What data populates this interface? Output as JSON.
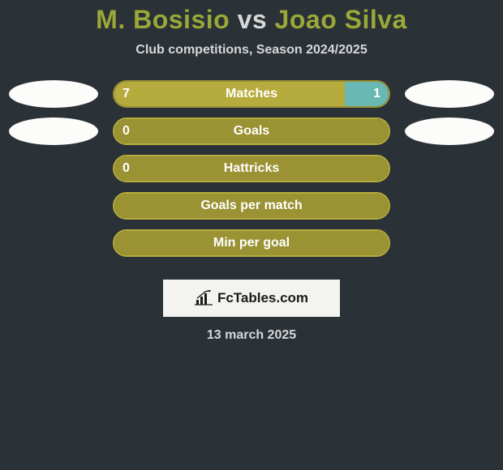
{
  "title": {
    "player1": "M. Bosisio",
    "vs": "vs",
    "player2": "Joao Silva",
    "fontsize": 32,
    "color_players": "#9aa838",
    "color_vs": "#d8d8d8"
  },
  "subtitle": {
    "text": "Club competitions, Season 2024/2025",
    "fontsize": 16,
    "color": "#d8d8d8"
  },
  "background_color": "#2a3137",
  "bar_outer_width": 342,
  "bar_border_radius": 17,
  "colors": {
    "olive_light": "#b6ac3d",
    "olive_dark": "#9a9233",
    "teal": "#6ab8b3",
    "white_pill": "#fcfcfa",
    "text_white": "#ffffff"
  },
  "rows": [
    {
      "metric": "Matches",
      "left_value": "7",
      "right_value": "1",
      "left_fill_pct": 84,
      "right_fill_pct": 16,
      "left_fill_color": "#b6ac3d",
      "right_fill_color": "#6ab8b3",
      "border_color": "#9a9233",
      "pill_left_color": "#fcfcfa",
      "pill_right_color": "#fcfcfa",
      "show_pills": true
    },
    {
      "metric": "Goals",
      "left_value": "0",
      "right_value": "",
      "left_fill_pct": 100,
      "right_fill_pct": 0,
      "left_fill_color": "#9a9233",
      "right_fill_color": "#9a9233",
      "border_color": "#b6ac3d",
      "pill_left_color": "#fcfcfa",
      "pill_right_color": "#fcfcfa",
      "show_pills": true
    },
    {
      "metric": "Hattricks",
      "left_value": "0",
      "right_value": "",
      "left_fill_pct": 100,
      "right_fill_pct": 0,
      "left_fill_color": "#9a9233",
      "right_fill_color": "#9a9233",
      "border_color": "#b6ac3d",
      "pill_left_color": "",
      "pill_right_color": "",
      "show_pills": false
    },
    {
      "metric": "Goals per match",
      "left_value": "",
      "right_value": "",
      "left_fill_pct": 100,
      "right_fill_pct": 0,
      "left_fill_color": "#9a9233",
      "right_fill_color": "#9a9233",
      "border_color": "#b6ac3d",
      "pill_left_color": "",
      "pill_right_color": "",
      "show_pills": false
    },
    {
      "metric": "Min per goal",
      "left_value": "",
      "right_value": "",
      "left_fill_pct": 100,
      "right_fill_pct": 0,
      "left_fill_color": "#9a9233",
      "right_fill_color": "#9a9233",
      "border_color": "#b6ac3d",
      "pill_left_color": "",
      "pill_right_color": "",
      "show_pills": false
    }
  ],
  "logo": {
    "text": "FcTables.com",
    "box_bg": "#f3f3ef",
    "text_color": "#1a1a1a"
  },
  "date": {
    "text": "13 march 2025",
    "color": "#d8d8d8"
  }
}
